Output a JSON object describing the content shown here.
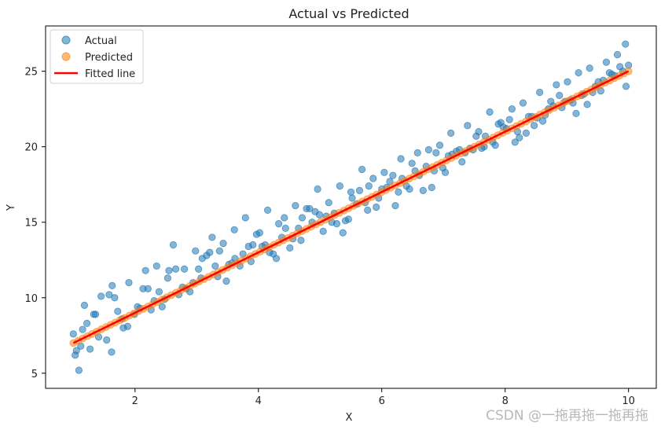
{
  "chart_data": {
    "type": "scatter",
    "title": "Actual vs Predicted",
    "xlabel": "X",
    "ylabel": "Y",
    "xlim": [
      0.55,
      10.45
    ],
    "ylim": [
      4.0,
      28.0
    ],
    "xticks": [
      2,
      4,
      6,
      8,
      10
    ],
    "yticks": [
      5,
      10,
      15,
      20,
      25
    ],
    "grid": false,
    "legend_position": "top-left",
    "fit": {
      "slope": 2.0,
      "intercept": 5.0,
      "x_range": [
        1.0,
        10.0
      ]
    },
    "series": [
      {
        "name": "Actual",
        "kind": "scatter",
        "color": "#1f77b4",
        "alpha": 0.55,
        "x": [
          1.0,
          1.09,
          1.18,
          1.27,
          1.36,
          1.45,
          1.54,
          1.63,
          1.72,
          1.81,
          1.9,
          1.99,
          2.08,
          2.17,
          2.26,
          2.35,
          2.44,
          2.53,
          2.62,
          2.71,
          2.8,
          2.89,
          2.98,
          3.07,
          3.16,
          3.25,
          3.34,
          3.43,
          3.52,
          3.61,
          3.7,
          3.79,
          3.88,
          3.97,
          4.06,
          4.15,
          4.24,
          4.33,
          4.42,
          4.51,
          4.6,
          4.69,
          4.78,
          4.87,
          4.96,
          5.05,
          5.14,
          5.23,
          5.32,
          5.41,
          5.5,
          5.59,
          5.68,
          5.77,
          5.86,
          5.95,
          6.04,
          6.13,
          6.22,
          6.31,
          6.4,
          6.49,
          6.58,
          6.67,
          6.76,
          6.85,
          6.94,
          7.03,
          7.12,
          7.21,
          7.3,
          7.39,
          7.48,
          7.57,
          7.66,
          7.75,
          7.84,
          7.93,
          8.02,
          8.11,
          8.2,
          8.29,
          8.38,
          8.47,
          8.56,
          8.65,
          8.74,
          8.83,
          8.92,
          9.01,
          9.1,
          9.19,
          9.28,
          9.37,
          9.46,
          9.55,
          9.64,
          9.73,
          9.82,
          9.91,
          10.0,
          1.05,
          1.22,
          1.41,
          1.67,
          1.88,
          2.13,
          2.39,
          2.66,
          2.94,
          3.21,
          3.48,
          3.75,
          4.02,
          4.29,
          4.56,
          4.83,
          5.1,
          5.37,
          5.64,
          5.91,
          6.18,
          6.45,
          6.72,
          6.99,
          7.26,
          7.53,
          7.8,
          8.07,
          8.34,
          8.61,
          8.88,
          9.15,
          9.42,
          9.69,
          9.96,
          1.12,
          1.33,
          1.58,
          1.79,
          2.04,
          2.31,
          2.55,
          2.83,
          3.09,
          3.37,
          3.62,
          3.91,
          4.18,
          4.44,
          4.71,
          4.99,
          5.27,
          5.52,
          5.79,
          6.08,
          6.33,
          6.61,
          6.88,
          7.14,
          7.43,
          7.68,
          7.97,
          8.23,
          8.52,
          8.78,
          9.06,
          9.33,
          9.59,
          9.86,
          1.03,
          1.15,
          1.62,
          2.21,
          2.48,
          2.77,
          3.03,
          3.3,
          3.57,
          3.84,
          4.11,
          4.38,
          4.65,
          4.92,
          5.19,
          5.46,
          5.73,
          6.0,
          6.27,
          6.54,
          6.81,
          7.08,
          7.35,
          7.62,
          7.89,
          8.16,
          8.43,
          8.7,
          8.97,
          9.24,
          9.51,
          9.78,
          9.95
        ],
        "y": [
          7.6,
          5.2,
          9.5,
          6.6,
          8.9,
          10.1,
          7.2,
          10.8,
          9.1,
          8.0,
          11.0,
          8.9,
          9.3,
          11.8,
          9.2,
          12.1,
          9.4,
          11.3,
          13.5,
          10.2,
          11.9,
          10.4,
          13.1,
          11.3,
          12.8,
          14.0,
          11.4,
          13.6,
          12.2,
          14.5,
          12.1,
          15.3,
          12.4,
          14.2,
          13.4,
          15.8,
          12.9,
          14.9,
          15.3,
          13.3,
          16.1,
          13.8,
          15.9,
          15.0,
          17.2,
          14.4,
          16.3,
          15.6,
          17.4,
          15.1,
          17.0,
          16.2,
          18.5,
          15.8,
          17.9,
          16.6,
          18.3,
          17.7,
          16.1,
          19.2,
          17.4,
          18.9,
          19.6,
          17.1,
          19.8,
          18.4,
          20.1,
          18.3,
          20.9,
          19.7,
          19.0,
          21.4,
          19.8,
          21.0,
          20.0,
          22.3,
          20.1,
          21.6,
          21.2,
          22.5,
          21.0,
          22.9,
          22.0,
          21.4,
          23.6,
          22.1,
          23.0,
          24.1,
          22.6,
          24.3,
          22.9,
          24.9,
          23.5,
          25.2,
          24.0,
          23.7,
          25.6,
          24.8,
          26.1,
          25.0,
          25.4,
          6.5,
          8.3,
          7.4,
          10.0,
          8.1,
          10.6,
          10.4,
          11.9,
          11.0,
          13.0,
          11.1,
          12.9,
          14.3,
          12.6,
          13.9,
          15.9,
          15.4,
          14.3,
          17.1,
          16.0,
          18.1,
          17.2,
          18.7,
          18.6,
          19.8,
          20.7,
          20.3,
          21.8,
          20.9,
          21.7,
          23.4,
          22.2,
          23.6,
          24.9,
          24.0,
          6.8,
          8.9,
          10.2,
          8.6,
          9.4,
          9.8,
          11.8,
          10.6,
          12.6,
          13.1,
          12.6,
          13.5,
          13.0,
          14.6,
          15.3,
          15.5,
          14.9,
          16.6,
          17.4,
          17.3,
          17.9,
          18.1,
          19.6,
          19.5,
          19.9,
          20.7,
          21.3,
          20.6,
          21.9,
          22.7,
          23.1,
          22.8,
          24.4,
          25.3,
          6.2,
          7.9,
          6.4,
          10.6,
          9.9,
          10.7,
          11.9,
          12.1,
          12.3,
          13.4,
          13.5,
          14.0,
          14.6,
          15.7,
          15.0,
          15.2,
          16.3,
          17.2,
          17.0,
          18.4,
          17.3,
          19.4,
          19.6,
          19.9,
          21.5,
          20.3,
          22.0,
          22.5,
          23.0,
          23.4,
          24.3,
          24.7,
          26.8
        ]
      },
      {
        "name": "Predicted",
        "kind": "scatter",
        "color": "#ff7f0e",
        "alpha": 0.55,
        "x_range": [
          1.0,
          10.0
        ],
        "count": 120
      },
      {
        "name": "Fitted line",
        "kind": "line",
        "color": "#ff0000",
        "x": [
          1.0,
          10.0
        ],
        "y": [
          7.0,
          25.0
        ]
      }
    ]
  },
  "watermark": "CSDN @一拖再拖一拖再拖"
}
